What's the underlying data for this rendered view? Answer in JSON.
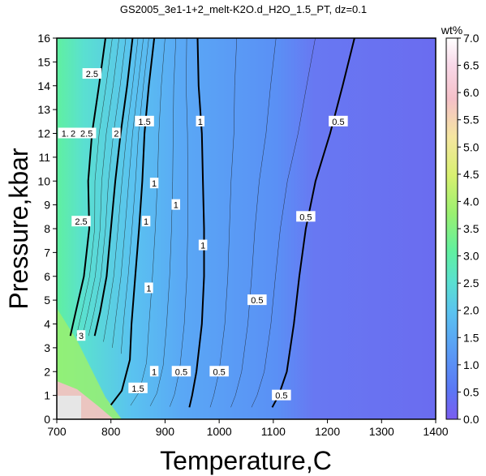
{
  "chart_data": {
    "type": "heatmap",
    "title": "GS2005_3e1-1+2_melt-K2O.d_H2O_1.5_PT, dz=0.1",
    "xlabel": "Temperature,C",
    "ylabel": "Pressure,kbar",
    "xlim": [
      700,
      1400
    ],
    "ylim": [
      0,
      16
    ],
    "xticks": [
      "700",
      "800",
      "900",
      "1000",
      "1100",
      "1200",
      "1300",
      "1400"
    ],
    "yticks": [
      "0",
      "1",
      "2",
      "3",
      "4",
      "5",
      "6",
      "7",
      "8",
      "9",
      "10",
      "11",
      "12",
      "13",
      "14",
      "15",
      "16"
    ],
    "colorbar": {
      "label": "wt%",
      "range": [
        0.0,
        7.0
      ],
      "ticks": [
        "0.0",
        "0.5",
        "1.0",
        "1.5",
        "2.0",
        "2.5",
        "3.0",
        "3.5",
        "4.0",
        "4.5",
        "5.0",
        "5.5",
        "6.0",
        "6.5",
        "7.0"
      ],
      "colors": [
        "#7a5cf0",
        "#5a78f5",
        "#5a9cf5",
        "#5ac2f0",
        "#5ae0d0",
        "#60f0a0",
        "#9af070",
        "#d8f070",
        "#f5e6a0",
        "#f5c0c8",
        "#f8d8e8",
        "#ffffff"
      ]
    },
    "contours": [
      {
        "level": "0.5",
        "points": [
          [
            1250,
            16
          ],
          [
            1228,
            14
          ],
          [
            1205,
            12
          ],
          [
            1178,
            10
          ],
          [
            1160,
            8
          ],
          [
            1148,
            6
          ],
          [
            1138,
            4
          ],
          [
            1125,
            2
          ],
          [
            1110,
            1
          ],
          [
            1098,
            0.5
          ]
        ]
      },
      {
        "level": "1",
        "points": [
          [
            960,
            16
          ],
          [
            962,
            14
          ],
          [
            968,
            12
          ],
          [
            970,
            10
          ],
          [
            972,
            8
          ],
          [
            972,
            6
          ],
          [
            968,
            4
          ],
          [
            958,
            2
          ],
          [
            950,
            1
          ],
          [
            945,
            0.5
          ]
        ]
      },
      {
        "level": "1.5",
        "points": [
          [
            880,
            16
          ],
          [
            870,
            14
          ],
          [
            862,
            12
          ],
          [
            858,
            10
          ],
          [
            852,
            8
          ],
          [
            845,
            6
          ],
          [
            838,
            4
          ],
          [
            835,
            2.5
          ],
          [
            820,
            1.2
          ],
          [
            800,
            0.6
          ]
        ]
      },
      {
        "level": "2",
        "points": [
          [
            840,
            16
          ],
          [
            830,
            14
          ],
          [
            818,
            12
          ],
          [
            808,
            10
          ],
          [
            800,
            8
          ],
          [
            792,
            6
          ],
          [
            780,
            4.5
          ],
          [
            770,
            3.5
          ]
        ]
      },
      {
        "level": "2.5",
        "points": [
          [
            790,
            16
          ],
          [
            778,
            14
          ],
          [
            765,
            12
          ],
          [
            758,
            10
          ],
          [
            760,
            8
          ],
          [
            750,
            6
          ],
          [
            735,
            4.5
          ],
          [
            725,
            3.5
          ]
        ]
      }
    ],
    "contour_labels": [
      {
        "text": "0.5",
        "x": 1220,
        "y": 12.5
      },
      {
        "text": "0.5",
        "x": 1160,
        "y": 8.5
      },
      {
        "text": "0.5",
        "x": 1070,
        "y": 5.0
      },
      {
        "text": "0.5",
        "x": 1000,
        "y": 2.0
      },
      {
        "text": "0.5",
        "x": 930,
        "y": 2.0
      },
      {
        "text": "0.5",
        "x": 1115,
        "y": 1.0
      },
      {
        "text": "1",
        "x": 965,
        "y": 12.5
      },
      {
        "text": "1",
        "x": 970,
        "y": 7.3
      },
      {
        "text": "1",
        "x": 880,
        "y": 9.9
      },
      {
        "text": "1",
        "x": 920,
        "y": 9.0
      },
      {
        "text": "1",
        "x": 865,
        "y": 8.3
      },
      {
        "text": "1",
        "x": 870,
        "y": 5.5
      },
      {
        "text": "1",
        "x": 880,
        "y": 2.0
      },
      {
        "text": "1.5",
        "x": 862,
        "y": 12.5
      },
      {
        "text": "1.5",
        "x": 720,
        "y": 12.0
      },
      {
        "text": "1.5",
        "x": 850,
        "y": 1.3
      },
      {
        "text": "2",
        "x": 810,
        "y": 12.0
      },
      {
        "text": "2",
        "x": 730,
        "y": 12.0
      },
      {
        "text": "2.5",
        "x": 765,
        "y": 14.5
      },
      {
        "text": "2.5",
        "x": 755,
        "y": 12.0
      },
      {
        "text": "2.5",
        "x": 745,
        "y": 8.3
      },
      {
        "text": "3",
        "x": 745,
        "y": 3.5
      }
    ]
  }
}
